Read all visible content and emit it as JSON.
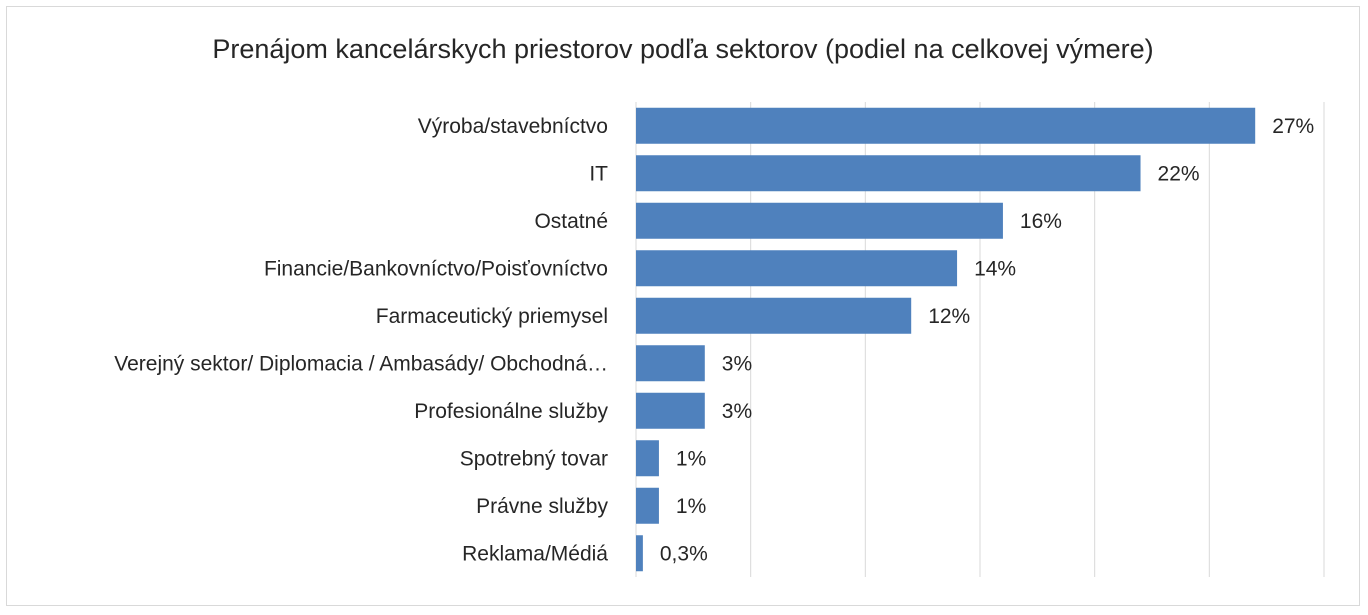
{
  "chart_data": {
    "type": "bar",
    "orientation": "horizontal",
    "title": "Prenájom kancelárskych priestorov podľa sektorov (podiel na celkovej výmere)",
    "categories": [
      "Výroba/stavebníctvo",
      "IT",
      "Ostatné",
      "Financie/Bankovníctvo/Poisťovníctvo",
      "Farmaceutický priemysel",
      "Verejný sektor/ Diplomacia / Ambasády/ Obchodná…",
      "Profesionálne služby",
      "Spotrebný tovar",
      "Právne služby",
      "Reklama/Médiá"
    ],
    "values": [
      27,
      22,
      16,
      14,
      12,
      3,
      3,
      1,
      1,
      0.3
    ],
    "data_labels": [
      "27%",
      "22%",
      "16%",
      "14%",
      "12%",
      "3%",
      "3%",
      "1%",
      "1%",
      "0,3%"
    ],
    "xlim": [
      0,
      30
    ],
    "grid": true,
    "legend": "none",
    "bar_color": "#4f81bd",
    "grid_color": "#d9d9d9"
  }
}
